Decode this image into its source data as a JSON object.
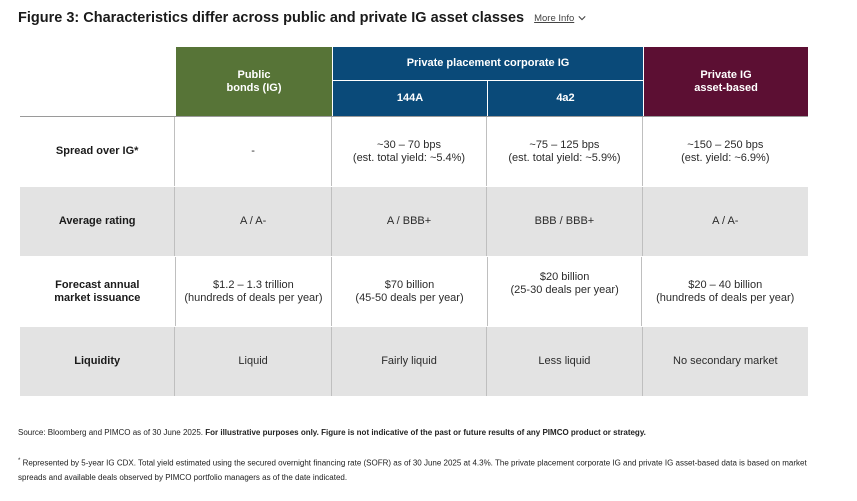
{
  "title": "Figure 3: Characteristics differ across public and private IG asset classes",
  "more_info": "More Info",
  "headers": {
    "public": "Public\nbonds (IG)",
    "private_placement": "Private placement corporate IG",
    "sub_144a": "144A",
    "sub_4a2": "4a2",
    "private_asset": "Private IG\nasset-based"
  },
  "rows": [
    {
      "label": "Spread over IG*",
      "cells": [
        "-",
        "~30 – 70 bps\n(est. total yield: ~5.4%)",
        "~75 – 125 bps\n(est. total yield: ~5.9%)",
        "~150 – 250 bps\n(est. yield: ~6.9%)"
      ]
    },
    {
      "label": "Average rating",
      "cells": [
        "A / A-",
        "A / BBB+",
        "BBB / BBB+",
        "A / A-"
      ]
    },
    {
      "label": "Forecast annual\nmarket issuance",
      "cells": [
        "$1.2 – 1.3 trillion\n(hundreds of deals per year)",
        "$70 billion\n(45-50 deals per year)",
        "$20 billion\n(25-30 deals per year)",
        "$20 – 40 billion\n(hundreds of deals per year)"
      ]
    },
    {
      "label": "Liquidity",
      "cells": [
        "Liquid",
        "Fairly liquid",
        "Less liquid",
        "No secondary market"
      ]
    }
  ],
  "source": "Source: Bloomberg and PIMCO as of 30 June 2025.",
  "source_bold": "For illustrative purposes only. Figure is not indicative of the past or future results of any PIMCO product or strategy.",
  "footnote_mark": "*",
  "footnote": "Represented by 5-year IG CDX. Total yield estimated using the secured overnight financing rate (SOFR) as of 30 June 2025 at 4.3%. The private placement corporate IG and private IG asset-based data is based on market spreads and available deals observed by PIMCO portfolio managers as of the date indicated.",
  "colors": {
    "public": "#577437",
    "private_placement": "#0a4a79",
    "private_asset": "#5c0f33",
    "grey_row": "#e3e3e3"
  }
}
